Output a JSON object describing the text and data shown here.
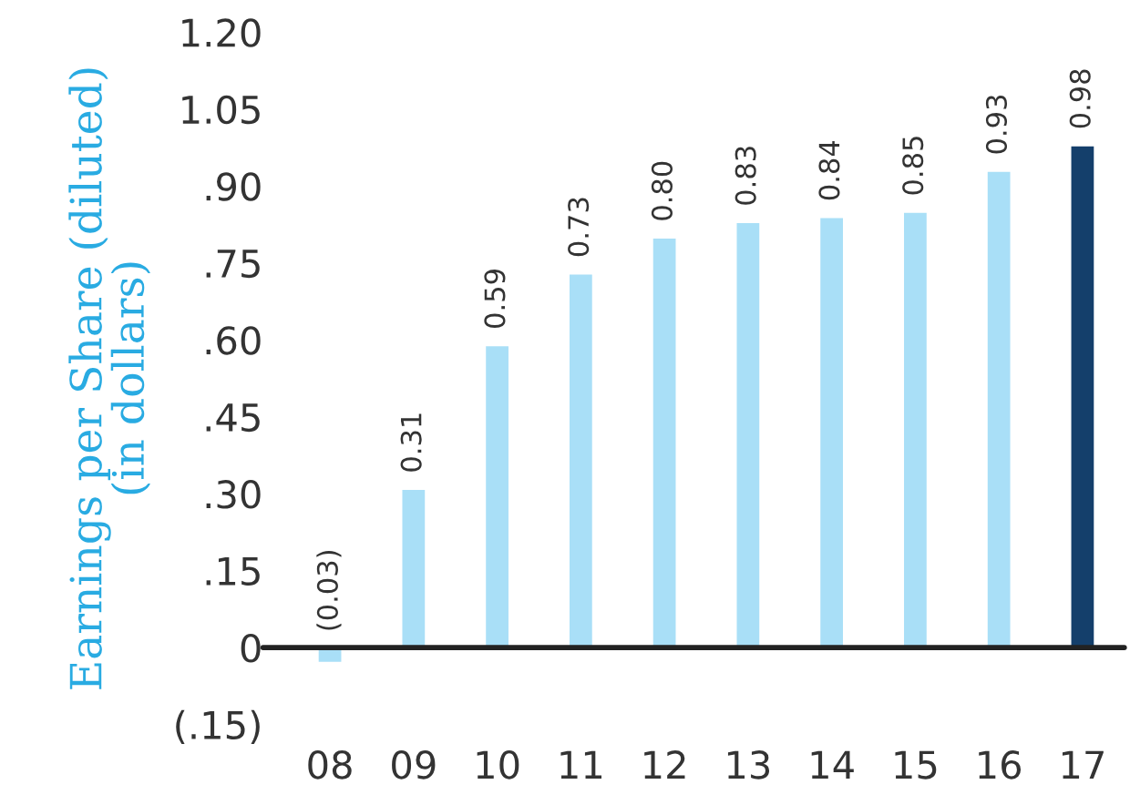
{
  "chart_data": {
    "type": "bar",
    "ylabel": "Earnings per Share (diluted)\n(in dollars)",
    "categories": [
      "08",
      "09",
      "10",
      "11",
      "12",
      "13",
      "14",
      "15",
      "16",
      "17"
    ],
    "values": [
      -0.03,
      0.31,
      0.59,
      0.73,
      0.8,
      0.83,
      0.84,
      0.85,
      0.93,
      0.98
    ],
    "value_labels": [
      "(0.03)",
      "0.31",
      "0.59",
      "0.73",
      "0.80",
      "0.83",
      "0.84",
      "0.85",
      "0.93",
      "0.98"
    ],
    "colors": [
      "#a9dff7",
      "#a9dff7",
      "#a9dff7",
      "#a9dff7",
      "#a9dff7",
      "#a9dff7",
      "#a9dff7",
      "#a9dff7",
      "#a9dff7",
      "#143f6b"
    ],
    "ylim": [
      -0.15,
      1.2
    ],
    "yticks": [
      {
        "value": -0.15,
        "label": "(.15)"
      },
      0,
      {
        "value": 0.15,
        "label": ".15"
      },
      {
        "value": 0.3,
        "label": ".30"
      },
      {
        "value": 0.45,
        "label": ".45"
      },
      {
        "value": 0.6,
        "label": ".60"
      },
      {
        "value": 0.75,
        "label": ".75"
      },
      {
        "value": 0.9,
        "label": ".90"
      },
      {
        "value": 1.05,
        "label": "1.05"
      },
      {
        "value": 1.2,
        "label": "1.20"
      }
    ],
    "ref_lines": [
      {
        "axis": "y",
        "value": 0,
        "color": "#222222"
      }
    ],
    "grid": false,
    "legend": false
  }
}
